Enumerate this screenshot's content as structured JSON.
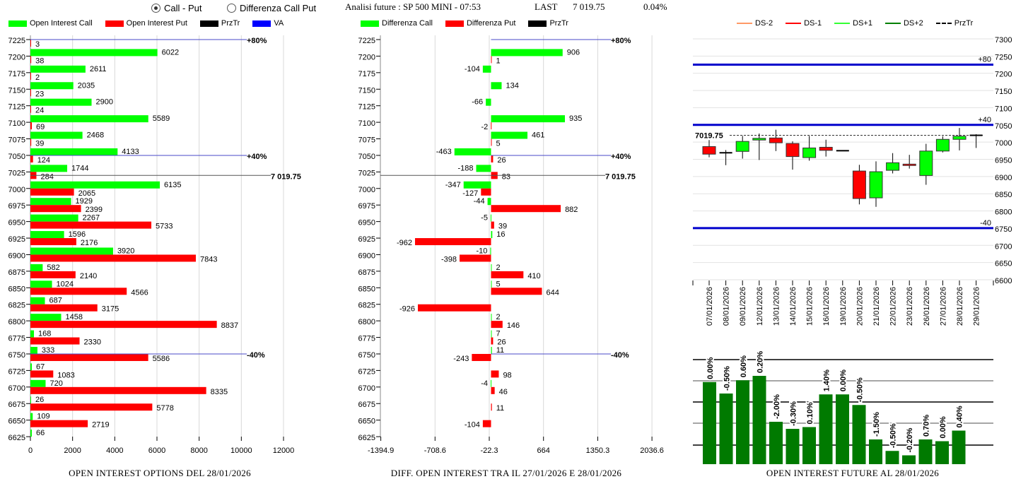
{
  "header": {
    "mode_options": [
      {
        "label": "Call - Put",
        "selected": true
      },
      {
        "label": "Differenza Call Put",
        "selected": false
      }
    ],
    "title": "Analisi future : SP 500 MINI - 07:53",
    "last_label": "LAST",
    "last_value": "7 019.75",
    "change": "0.04%"
  },
  "colors": {
    "call": "#00ff00",
    "put": "#ff0000",
    "prztr": "#000000",
    "va": "#0000ff",
    "candle_up": "#00ff00",
    "candle_down": "#ff0000",
    "bar": "#007a00"
  },
  "left_chart": {
    "legend": [
      {
        "label": "Open Interest Call",
        "color": "#00ff00"
      },
      {
        "label": "Open Interest Put",
        "color": "#ff0000"
      },
      {
        "label": "PrzTr",
        "color": "#000000"
      },
      {
        "label": "VA",
        "color": "#0000ff"
      }
    ],
    "footer": "OPEN INTEREST OPTIONS DEL 28/01/2026"
  },
  "middle_chart": {
    "legend": [
      {
        "label": "Differenza Call",
        "color": "#00ff00"
      },
      {
        "label": "Differenza Put",
        "color": "#ff0000"
      },
      {
        "label": "PrzTr",
        "color": "#000000"
      }
    ],
    "footer": "DIFF. OPEN INTEREST TRA IL 27/01/2026 E 28/01/2026"
  },
  "right_chart": {
    "legend": [
      {
        "label": "DS-2",
        "color": "#ff9966",
        "style": "solid"
      },
      {
        "label": "DS-1",
        "color": "#ff0000",
        "style": "solid"
      },
      {
        "label": "DS+1",
        "color": "#33ff33",
        "style": "solid"
      },
      {
        "label": "DS+2",
        "color": "#008000",
        "style": "solid"
      },
      {
        "label": "PrzTr",
        "color": "#000000",
        "style": "dashed"
      }
    ],
    "footer": "OPEN INTEREST FUTURE AL 28/01/2026"
  },
  "chart_data": [
    {
      "type": "bar",
      "orientation": "horizontal",
      "categories": [
        "7225",
        "7200",
        "7175",
        "7150",
        "7125",
        "7100",
        "7075",
        "7050",
        "7025",
        "7000",
        "6975",
        "6950",
        "6925",
        "6900",
        "6875",
        "6850",
        "6825",
        "6800",
        "6775",
        "6750",
        "6725",
        "6700",
        "6675",
        "6650",
        "6625"
      ],
      "series": [
        {
          "name": "Open Interest Call",
          "values": [
            null,
            6022,
            2611,
            2035,
            2900,
            5589,
            2468,
            4133,
            1744,
            6135,
            1929,
            2267,
            1596,
            3920,
            582,
            1024,
            687,
            1458,
            168,
            333,
            67,
            720,
            26,
            109,
            66
          ]
        },
        {
          "name": "Open Interest Put",
          "values": [
            3,
            38,
            2,
            23,
            24,
            69,
            39,
            124,
            284,
            2065,
            2399,
            5733,
            2176,
            7843,
            2140,
            4566,
            3175,
            8837,
            2330,
            5586,
            1083,
            8335,
            5778,
            2719,
            null
          ]
        }
      ],
      "xlim": [
        0,
        12000
      ],
      "xticks": [
        "0",
        "2000",
        "4000",
        "6000",
        "8000",
        "10000",
        "12000"
      ],
      "xtick_values": [
        0,
        2000,
        4000,
        6000,
        8000,
        10000,
        12000
      ],
      "ref_lines": [
        {
          "strike": 7225,
          "label": "+80%"
        },
        {
          "strike": 7050,
          "label": "+40%"
        },
        {
          "strike": 6750,
          "label": "-40%"
        }
      ],
      "price": {
        "value": 7019.75,
        "label": "7 019.75"
      },
      "grid": true
    },
    {
      "type": "bar",
      "orientation": "horizontal",
      "categories": [
        "7225",
        "7200",
        "7175",
        "7150",
        "7125",
        "7100",
        "7075",
        "7050",
        "7025",
        "7000",
        "6975",
        "6950",
        "6925",
        "6900",
        "6875",
        "6850",
        "6825",
        "6800",
        "6775",
        "6750",
        "6725",
        "6700",
        "6675",
        "6650",
        "6625"
      ],
      "series": [
        {
          "name": "Differenza Call",
          "values": [
            null,
            906,
            -104,
            134,
            -66,
            935,
            461,
            -463,
            -188,
            -347,
            -44,
            -5,
            16,
            -10,
            2,
            5,
            null,
            2,
            7,
            11,
            null,
            -4,
            null,
            null,
            null
          ]
        },
        {
          "name": "Differenza Put",
          "values": [
            null,
            1,
            null,
            null,
            null,
            -2,
            5,
            26,
            83,
            -127,
            882,
            39,
            -962,
            -398,
            410,
            644,
            -926,
            146,
            26,
            -243,
            98,
            46,
            11,
            -104,
            null
          ]
        }
      ],
      "xlim": [
        -1394.9,
        2036.6
      ],
      "xticks": [
        "-1394.9",
        "-708.6",
        "-22.3",
        "664",
        "1350.3",
        "2036.6"
      ],
      "xtick_values": [
        -1394.9,
        -708.6,
        -22.3,
        664,
        1350.3,
        2036.6
      ],
      "ref_lines": [
        {
          "strike": 7225,
          "label": "+80%"
        },
        {
          "strike": 7050,
          "label": "+40%"
        },
        {
          "strike": 6750,
          "label": "-40%"
        }
      ],
      "price": {
        "value": 7019.75,
        "label": "7 019.75"
      },
      "grid": true
    },
    {
      "type": "candlestick",
      "dates": [
        "07/01/2026",
        "08/01/2026",
        "09/01/2026",
        "12/01/2026",
        "13/01/2026",
        "14/01/2026",
        "15/01/2026",
        "16/01/2026",
        "19/01/2026",
        "20/01/2026",
        "21/01/2026",
        "22/01/2026",
        "23/01/2026",
        "26/01/2026",
        "27/01/2026",
        "28/01/2026",
        "29/01/2026"
      ],
      "ohlc": [
        [
          6987,
          7006,
          6956,
          6965
        ],
        [
          6969,
          6977,
          6933,
          6968
        ],
        [
          6973,
          7018,
          6952,
          7002
        ],
        [
          7006,
          7025,
          6948,
          7011
        ],
        [
          7012,
          7036,
          6974,
          6998
        ],
        [
          6996,
          7002,
          6920,
          6958
        ],
        [
          6955,
          7018,
          6946,
          6983
        ],
        [
          6985,
          7007,
          6958,
          6976
        ],
        [
          6975,
          6975,
          6975,
          6975
        ],
        [
          6916,
          6934,
          6819,
          6836
        ],
        [
          6838,
          6944,
          6812,
          6914
        ],
        [
          6918,
          6968,
          6909,
          6940
        ],
        [
          6936,
          6963,
          6923,
          6932
        ],
        [
          6903,
          6995,
          6876,
          6974
        ],
        [
          6974,
          7017,
          6970,
          7008
        ],
        [
          7008,
          7041,
          6976,
          7017
        ],
        [
          7019.75,
          7023,
          6983,
          7019.75
        ]
      ],
      "ylim": [
        6600,
        7300
      ],
      "yticks": [
        "6600",
        "6650",
        "6700",
        "6750",
        "6800",
        "6850",
        "6900",
        "6950",
        "7000",
        "7050",
        "7100",
        "7150",
        "7200",
        "7250",
        "7300"
      ],
      "ref_lines": [
        {
          "value": 7225,
          "label": "+80"
        },
        {
          "value": 7050,
          "label": "+40"
        },
        {
          "value": 6750,
          "label": "-40"
        }
      ],
      "price": {
        "value": 7019.75,
        "label": "7019.75"
      },
      "grid": true
    },
    {
      "type": "bar",
      "relative_values": [
        93,
        80,
        95,
        100,
        48,
        40,
        42,
        79,
        79,
        67,
        28,
        15,
        10,
        28,
        26,
        38
      ],
      "labels": [
        "0.00%",
        "-0.50%",
        "0.60%",
        "0.20%",
        "-2.00%",
        "-0.30%",
        "0.10%",
        "1.40%",
        "0.00%",
        "-0.50%",
        "-1.50%",
        "-0.50%",
        "-0.20%",
        "0.70%",
        "0.00%",
        "0.40%"
      ],
      "grid": true
    }
  ]
}
